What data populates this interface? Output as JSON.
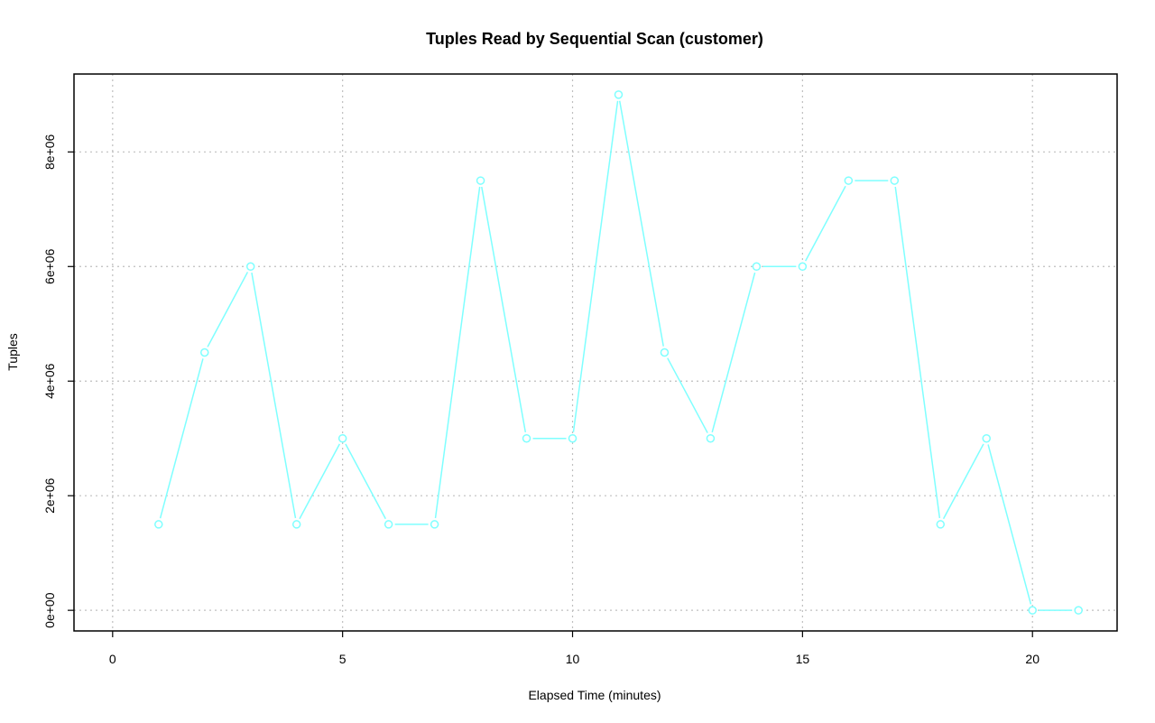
{
  "chart_data": {
    "type": "line",
    "title": "Tuples Read by Sequential Scan (customer)",
    "xlabel": "Elapsed Time (minutes)",
    "ylabel": "Tuples",
    "xlim": [
      -0.84,
      21.84
    ],
    "ylim": [
      -360000,
      9360000
    ],
    "x_ticks": [
      0,
      5,
      10,
      15,
      20
    ],
    "x_tick_labels": [
      "0",
      "5",
      "10",
      "15",
      "20"
    ],
    "y_ticks": [
      0,
      2000000,
      4000000,
      6000000,
      8000000
    ],
    "y_tick_labels": [
      "0e+00",
      "2e+06",
      "4e+06",
      "6e+06",
      "8e+06"
    ],
    "grid": true,
    "series": [
      {
        "color": "#7fffff",
        "x": [
          1,
          2,
          3,
          4,
          5,
          6,
          7,
          8,
          9,
          10,
          11,
          12,
          13,
          14,
          15,
          16,
          17,
          18,
          19,
          20,
          21
        ],
        "values": [
          1500000,
          4500000,
          6000000,
          1500000,
          3000000,
          1500000,
          1500000,
          7500000,
          3000000,
          3000000,
          9000000,
          4500000,
          3000000,
          6000000,
          6000000,
          7500000,
          7500000,
          1500000,
          3000000,
          0,
          0
        ]
      }
    ]
  }
}
